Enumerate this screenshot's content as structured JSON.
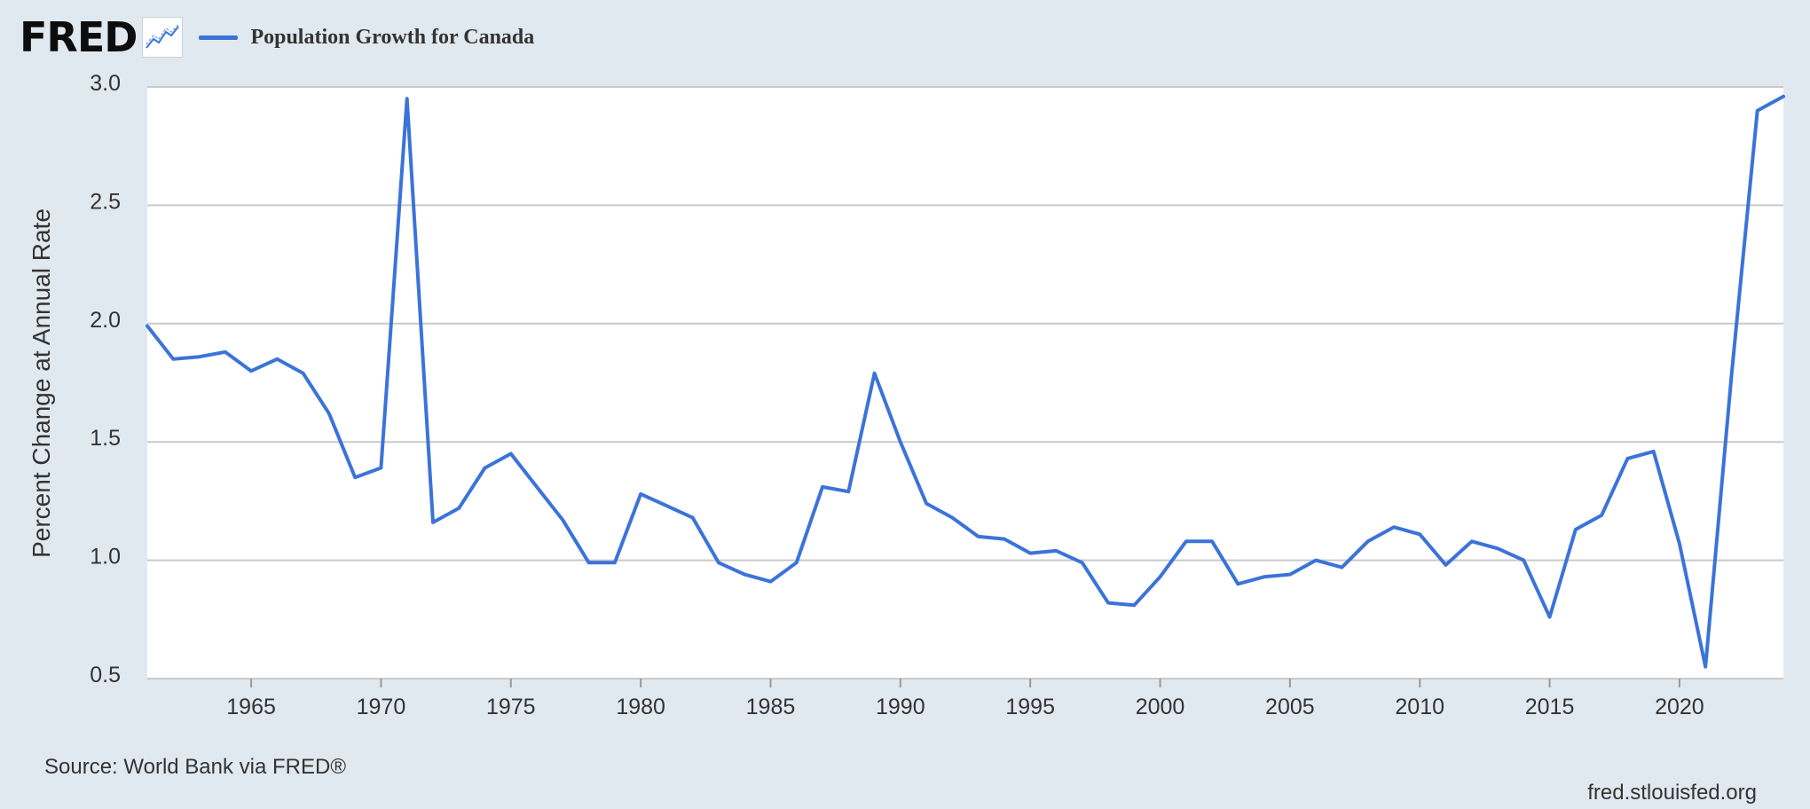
{
  "logo": {
    "text": "FRED",
    "icon": "trend-chart-icon"
  },
  "legend": {
    "label": "Population Growth for Canada",
    "color": "#3b73d9"
  },
  "source": "Source: World Bank via FRED®",
  "site": "fred.stlouisfed.org",
  "colors": {
    "background": "#e1e9f0",
    "plot_area": "#ffffff",
    "grid": "#c9c9c9",
    "line": "#3b73d9"
  },
  "chart_data": {
    "type": "line",
    "title": "",
    "xlabel": "",
    "ylabel": "Percent Change at Annual Rate",
    "xlim": [
      1961,
      2024
    ],
    "ylim": [
      0.5,
      3.0
    ],
    "x_ticks": [
      1965,
      1970,
      1975,
      1980,
      1985,
      1990,
      1995,
      2000,
      2005,
      2010,
      2015,
      2020
    ],
    "y_ticks": [
      "0.5",
      "1.0",
      "1.5",
      "2.0",
      "2.5",
      "3.0"
    ],
    "grid": true,
    "legend_position": "top-left",
    "series": [
      {
        "name": "Population Growth for Canada",
        "x": [
          1961,
          1962,
          1963,
          1964,
          1965,
          1966,
          1967,
          1968,
          1969,
          1970,
          1971,
          1972,
          1973,
          1974,
          1975,
          1976,
          1977,
          1978,
          1979,
          1980,
          1981,
          1982,
          1983,
          1984,
          1985,
          1986,
          1987,
          1988,
          1989,
          1990,
          1991,
          1992,
          1993,
          1994,
          1995,
          1996,
          1997,
          1998,
          1999,
          2000,
          2001,
          2002,
          2003,
          2004,
          2005,
          2006,
          2007,
          2008,
          2009,
          2010,
          2011,
          2012,
          2013,
          2014,
          2015,
          2016,
          2017,
          2018,
          2019,
          2020,
          2021,
          2022,
          2023,
          2024
        ],
        "y": [
          1.99,
          1.85,
          1.86,
          1.88,
          1.8,
          1.85,
          1.79,
          1.62,
          1.35,
          1.39,
          2.95,
          1.16,
          1.22,
          1.39,
          1.45,
          1.31,
          1.17,
          0.99,
          0.99,
          1.28,
          1.23,
          1.18,
          0.99,
          0.94,
          0.91,
          0.99,
          1.31,
          1.29,
          1.79,
          1.5,
          1.24,
          1.18,
          1.1,
          1.09,
          1.03,
          1.04,
          0.99,
          0.82,
          0.81,
          0.93,
          1.08,
          1.08,
          0.9,
          0.93,
          0.94,
          1.0,
          0.97,
          1.08,
          1.14,
          1.11,
          0.98,
          1.08,
          1.05,
          1.0,
          0.76,
          1.13,
          1.19,
          1.43,
          1.46,
          1.07,
          0.55,
          1.78,
          2.9,
          2.96
        ]
      }
    ]
  }
}
